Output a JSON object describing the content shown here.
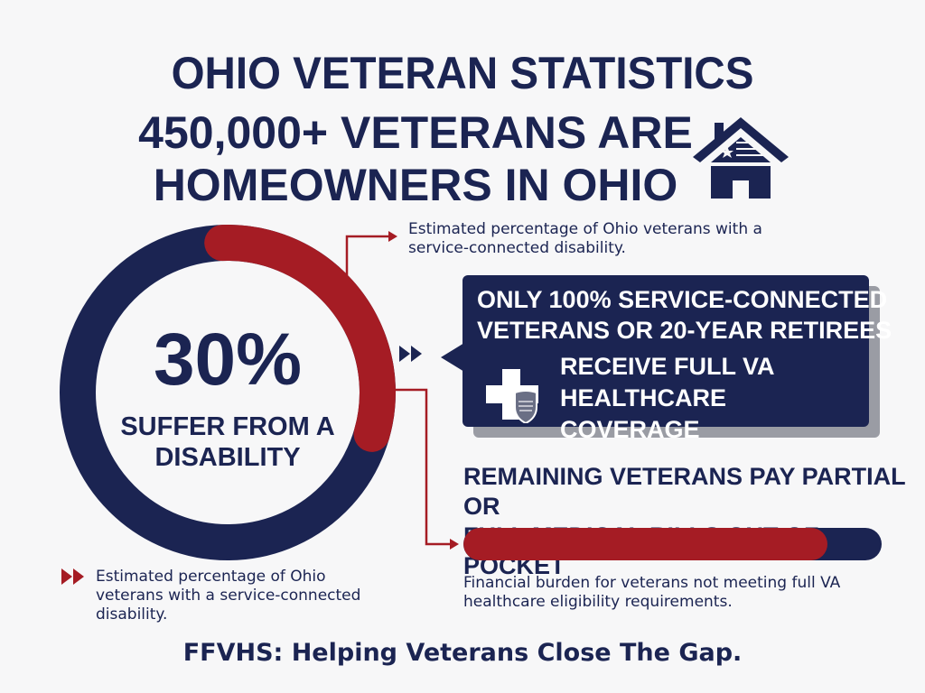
{
  "title": "OHIO VETERAN STATISTICS",
  "headline": "450,000+ VETERANS ARE HOMEOWNERS IN OHIO",
  "disability": {
    "percent_label": "30%",
    "percent_value": 30,
    "label": "SUFFER FROM A DISABILITY",
    "note_top": "Estimated percentage of Ohio veterans with a service-connected disability.",
    "note_bottom": "Estimated percentage of Ohio veterans with a service-connected disability."
  },
  "coverage_box": {
    "line1": "ONLY 100% SERVICE-CONNECTED",
    "line2": "VETERANS OR 20-YEAR RETIREES",
    "line3": "RECEIVE FULL VA",
    "line4": "HEALTHCARE COVERAGE"
  },
  "remaining": {
    "heading1": "REMAINING VETERANS PAY PARTIAL OR",
    "heading2": "FULL MEDICAL BILLS OUT OF POCKET",
    "bar_fraction": 0.87,
    "note": "Financial burden for veterans not meeting full VA healthcare eligibility requirements."
  },
  "footer": "FFVHS: Helping Veterans Close The Gap.",
  "colors": {
    "navy": "#1b2452",
    "red": "#a51c24",
    "background": "#f7f7f8"
  },
  "icons": [
    "house-flag-icon",
    "medical-cross-icon",
    "flag-shield-icon",
    "double-chevron-icon",
    "arrow-icon"
  ]
}
